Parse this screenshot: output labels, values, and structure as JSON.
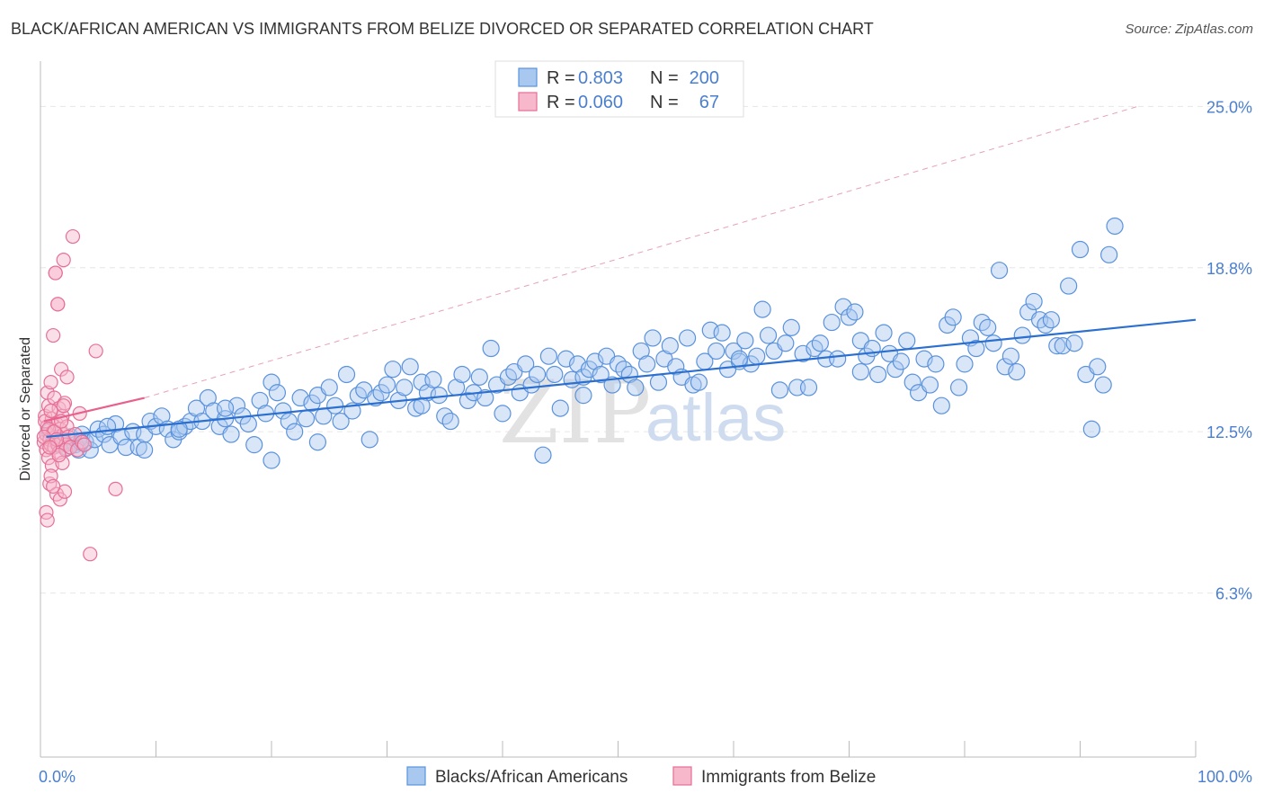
{
  "title": "BLACK/AFRICAN AMERICAN VS IMMIGRANTS FROM BELIZE DIVORCED OR SEPARATED CORRELATION CHART",
  "source": "Source: ZipAtlas.com",
  "watermark": {
    "zip": "ZIP",
    "atlas": "atlas"
  },
  "colors": {
    "blue_fill": "#a8c8f0",
    "blue_stroke": "#5b92dc",
    "blue_line": "#2b6fd0",
    "pink_fill": "#f7b8cb",
    "pink_stroke": "#e66f96",
    "pink_line": "#e8608c",
    "axis_text": "#4a7fd0",
    "grid": "#e6e6e6"
  },
  "legend": {
    "rows": [
      {
        "r_label": "R =",
        "r_value": "0.803",
        "n_label": "N =",
        "n_value": "200"
      },
      {
        "r_label": "R =",
        "r_value": "0.060",
        "n_label": "N =",
        "n_value": "67"
      }
    ]
  },
  "chart_data": {
    "type": "scatter",
    "title": "BLACK/AFRICAN AMERICAN VS IMMIGRANTS FROM BELIZE DIVORCED OR SEPARATED CORRELATION CHART",
    "xlabel": "",
    "ylabel": "Divorced or Separated",
    "xlim": [
      0,
      100
    ],
    "ylim": [
      0,
      26.6
    ],
    "x_tick_labels": [
      "0.0%",
      "100.0%"
    ],
    "y_ticks": [
      6.3,
      12.5,
      18.8,
      25.0
    ],
    "y_tick_labels": [
      "6.3%",
      "12.5%",
      "18.8%",
      "25.0%"
    ],
    "grid": true,
    "legend_position": "top-center",
    "series": [
      {
        "name": "Blacks/African Americans",
        "R": 0.803,
        "N": 200,
        "trend": {
          "x": [
            0.5,
            100
          ],
          "y": [
            12.3,
            16.8
          ]
        },
        "points": [
          [
            0.8,
            12.5
          ],
          [
            1.2,
            12.2
          ],
          [
            1.6,
            12.0
          ],
          [
            2.0,
            12.1
          ],
          [
            2.3,
            11.9
          ],
          [
            2.6,
            12.3
          ],
          [
            3.0,
            12.0
          ],
          [
            3.3,
            11.8
          ],
          [
            3.6,
            12.4
          ],
          [
            3.9,
            12.1
          ],
          [
            4.3,
            11.8
          ],
          [
            4.7,
            12.2
          ],
          [
            5.0,
            12.6
          ],
          [
            5.5,
            12.4
          ],
          [
            6.0,
            12.0
          ],
          [
            6.5,
            12.8
          ],
          [
            7.0,
            12.3
          ],
          [
            7.4,
            11.9
          ],
          [
            8.0,
            12.5
          ],
          [
            8.5,
            11.9
          ],
          [
            9.0,
            12.4
          ],
          [
            9.5,
            12.9
          ],
          [
            10.0,
            12.7
          ],
          [
            10.5,
            13.1
          ],
          [
            11.0,
            12.6
          ],
          [
            11.5,
            12.2
          ],
          [
            12.0,
            12.5
          ],
          [
            12.5,
            12.7
          ],
          [
            13.0,
            12.9
          ],
          [
            13.5,
            13.4
          ],
          [
            14.0,
            12.9
          ],
          [
            14.5,
            13.8
          ],
          [
            15.0,
            13.3
          ],
          [
            15.5,
            12.7
          ],
          [
            16.0,
            13.0
          ],
          [
            16.5,
            12.4
          ],
          [
            17.0,
            13.5
          ],
          [
            17.5,
            13.1
          ],
          [
            18.0,
            12.8
          ],
          [
            18.5,
            12.0
          ],
          [
            19.0,
            13.7
          ],
          [
            19.5,
            13.2
          ],
          [
            20.0,
            14.4
          ],
          [
            20.5,
            14.0
          ],
          [
            21.0,
            13.3
          ],
          [
            21.5,
            12.9
          ],
          [
            22.0,
            12.5
          ],
          [
            22.5,
            13.8
          ],
          [
            23.0,
            13.0
          ],
          [
            23.5,
            13.6
          ],
          [
            24.0,
            13.9
          ],
          [
            24.5,
            13.1
          ],
          [
            25.0,
            14.2
          ],
          [
            25.5,
            13.5
          ],
          [
            26.0,
            12.9
          ],
          [
            26.5,
            14.7
          ],
          [
            27.0,
            13.3
          ],
          [
            27.5,
            13.9
          ],
          [
            28.0,
            14.1
          ],
          [
            28.5,
            12.2
          ],
          [
            29.0,
            13.8
          ],
          [
            29.5,
            14.0
          ],
          [
            30.0,
            14.3
          ],
          [
            30.5,
            14.9
          ],
          [
            31.0,
            13.7
          ],
          [
            31.5,
            14.2
          ],
          [
            32.0,
            15.0
          ],
          [
            32.5,
            13.4
          ],
          [
            33.0,
            14.4
          ],
          [
            33.5,
            14.0
          ],
          [
            34.0,
            14.5
          ],
          [
            34.5,
            13.9
          ],
          [
            35.0,
            13.1
          ],
          [
            35.5,
            12.9
          ],
          [
            36.0,
            14.2
          ],
          [
            36.5,
            14.7
          ],
          [
            37.0,
            13.7
          ],
          [
            37.5,
            14.0
          ],
          [
            38.0,
            14.6
          ],
          [
            38.5,
            13.8
          ],
          [
            39.0,
            15.7
          ],
          [
            39.5,
            14.3
          ],
          [
            40.0,
            13.2
          ],
          [
            40.5,
            14.6
          ],
          [
            41.0,
            14.8
          ],
          [
            41.5,
            14.0
          ],
          [
            42.0,
            15.1
          ],
          [
            42.5,
            14.3
          ],
          [
            43.0,
            14.7
          ],
          [
            43.5,
            11.6
          ],
          [
            44.0,
            15.4
          ],
          [
            44.5,
            14.7
          ],
          [
            45.0,
            13.4
          ],
          [
            45.5,
            15.3
          ],
          [
            46.0,
            14.5
          ],
          [
            46.5,
            15.1
          ],
          [
            47.0,
            14.6
          ],
          [
            47.5,
            14.9
          ],
          [
            48.0,
            15.2
          ],
          [
            48.5,
            14.7
          ],
          [
            49.0,
            15.4
          ],
          [
            49.5,
            14.3
          ],
          [
            50.0,
            15.1
          ],
          [
            50.5,
            14.9
          ],
          [
            51.0,
            14.7
          ],
          [
            51.5,
            14.2
          ],
          [
            52.0,
            15.6
          ],
          [
            52.5,
            15.1
          ],
          [
            53.0,
            16.1
          ],
          [
            53.5,
            14.4
          ],
          [
            54.0,
            15.3
          ],
          [
            54.5,
            15.8
          ],
          [
            55.0,
            15.0
          ],
          [
            55.5,
            14.6
          ],
          [
            56.0,
            16.1
          ],
          [
            56.5,
            14.3
          ],
          [
            57.0,
            14.4
          ],
          [
            57.5,
            15.2
          ],
          [
            58.0,
            16.4
          ],
          [
            58.5,
            15.6
          ],
          [
            59.0,
            16.3
          ],
          [
            59.5,
            14.9
          ],
          [
            60.0,
            15.6
          ],
          [
            60.5,
            15.2
          ],
          [
            61.0,
            16.0
          ],
          [
            61.5,
            15.1
          ],
          [
            62.0,
            15.4
          ],
          [
            62.5,
            17.2
          ],
          [
            63.0,
            16.2
          ],
          [
            63.5,
            15.6
          ],
          [
            64.0,
            14.1
          ],
          [
            64.5,
            15.9
          ],
          [
            65.0,
            16.5
          ],
          [
            65.5,
            14.2
          ],
          [
            66.0,
            15.5
          ],
          [
            66.5,
            14.2
          ],
          [
            67.0,
            15.7
          ],
          [
            67.5,
            15.9
          ],
          [
            68.0,
            15.3
          ],
          [
            68.5,
            16.7
          ],
          [
            69.0,
            15.3
          ],
          [
            69.5,
            17.3
          ],
          [
            70.0,
            16.9
          ],
          [
            70.5,
            17.1
          ],
          [
            71.0,
            16.0
          ],
          [
            71.5,
            15.4
          ],
          [
            72.0,
            15.7
          ],
          [
            72.5,
            14.7
          ],
          [
            73.0,
            16.3
          ],
          [
            73.5,
            15.5
          ],
          [
            74.0,
            14.9
          ],
          [
            74.5,
            15.2
          ],
          [
            75.0,
            16.0
          ],
          [
            75.5,
            14.4
          ],
          [
            76.0,
            14.0
          ],
          [
            76.5,
            15.3
          ],
          [
            77.0,
            14.3
          ],
          [
            77.5,
            15.1
          ],
          [
            78.0,
            13.5
          ],
          [
            78.5,
            16.6
          ],
          [
            79.0,
            16.9
          ],
          [
            79.5,
            14.2
          ],
          [
            80.0,
            15.1
          ],
          [
            80.5,
            16.1
          ],
          [
            81.0,
            15.7
          ],
          [
            81.5,
            16.7
          ],
          [
            82.0,
            16.5
          ],
          [
            82.5,
            15.9
          ],
          [
            83.0,
            18.7
          ],
          [
            83.5,
            15.0
          ],
          [
            84.0,
            15.4
          ],
          [
            84.5,
            14.8
          ],
          [
            85.0,
            16.2
          ],
          [
            85.5,
            17.1
          ],
          [
            86.0,
            17.5
          ],
          [
            86.5,
            16.8
          ],
          [
            87.0,
            16.6
          ],
          [
            87.5,
            16.8
          ],
          [
            88.0,
            15.8
          ],
          [
            88.5,
            15.8
          ],
          [
            89.0,
            18.1
          ],
          [
            89.5,
            15.9
          ],
          [
            90.0,
            19.5
          ],
          [
            90.5,
            14.7
          ],
          [
            91.0,
            12.6
          ],
          [
            91.5,
            15.0
          ],
          [
            92.0,
            14.3
          ],
          [
            92.5,
            19.3
          ],
          [
            93.0,
            20.4
          ],
          [
            3.5,
            12.1
          ],
          [
            9.0,
            11.8
          ],
          [
            20.0,
            11.4
          ],
          [
            5.8,
            12.7
          ],
          [
            12.0,
            12.6
          ],
          [
            16.0,
            13.4
          ],
          [
            24.0,
            12.1
          ],
          [
            33.0,
            13.5
          ],
          [
            47.0,
            13.9
          ],
          [
            60.5,
            15.3
          ],
          [
            71.0,
            14.8
          ]
        ]
      },
      {
        "name": "Immigrants from Belize",
        "R": 0.06,
        "N": 67,
        "trend": {
          "x": [
            0.3,
            9.0
          ],
          "y": [
            12.9,
            13.8
          ]
        },
        "dashed_extension": {
          "x": [
            9.0,
            95.0
          ],
          "y": [
            13.8,
            25.0
          ]
        },
        "points": [
          [
            0.3,
            12.1
          ],
          [
            0.4,
            13.1
          ],
          [
            0.5,
            11.8
          ],
          [
            0.5,
            12.4
          ],
          [
            0.6,
            14.0
          ],
          [
            0.6,
            12.7
          ],
          [
            0.7,
            11.5
          ],
          [
            0.7,
            13.5
          ],
          [
            0.8,
            12.2
          ],
          [
            0.8,
            10.5
          ],
          [
            0.9,
            14.4
          ],
          [
            0.9,
            12.0
          ],
          [
            1.0,
            13.0
          ],
          [
            1.0,
            11.2
          ],
          [
            1.1,
            12.5
          ],
          [
            1.1,
            16.2
          ],
          [
            1.2,
            11.9
          ],
          [
            1.2,
            13.8
          ],
          [
            1.3,
            12.3
          ],
          [
            1.3,
            18.6
          ],
          [
            1.4,
            10.1
          ],
          [
            1.4,
            12.8
          ],
          [
            1.5,
            12.0
          ],
          [
            1.5,
            17.4
          ],
          [
            1.6,
            11.7
          ],
          [
            1.6,
            13.4
          ],
          [
            1.7,
            9.9
          ],
          [
            1.7,
            12.6
          ],
          [
            1.8,
            14.9
          ],
          [
            1.8,
            12.2
          ],
          [
            1.9,
            11.3
          ],
          [
            1.9,
            13.1
          ],
          [
            2.0,
            12.4
          ],
          [
            2.0,
            19.1
          ],
          [
            2.1,
            10.2
          ],
          [
            2.1,
            13.6
          ],
          [
            2.2,
            12.0
          ],
          [
            2.2,
            11.8
          ],
          [
            2.3,
            14.6
          ],
          [
            2.3,
            12.7
          ],
          [
            2.4,
            12.3
          ],
          [
            2.6,
            11.9
          ],
          [
            2.8,
            20.0
          ],
          [
            3.0,
            12.4
          ],
          [
            3.2,
            11.8
          ],
          [
            3.4,
            13.2
          ],
          [
            3.6,
            12.1
          ],
          [
            3.8,
            12.0
          ],
          [
            4.3,
            7.8
          ],
          [
            4.8,
            15.6
          ],
          [
            6.5,
            10.3
          ],
          [
            0.5,
            9.4
          ],
          [
            0.6,
            9.1
          ],
          [
            0.9,
            10.8
          ],
          [
            1.1,
            10.4
          ],
          [
            1.3,
            18.6
          ],
          [
            1.5,
            17.4
          ],
          [
            0.4,
            12.9
          ],
          [
            0.7,
            12.6
          ],
          [
            0.9,
            13.3
          ],
          [
            1.2,
            12.5
          ],
          [
            1.4,
            12.2
          ],
          [
            1.6,
            11.6
          ],
          [
            1.8,
            12.9
          ],
          [
            2.0,
            13.5
          ],
          [
            0.3,
            12.3
          ],
          [
            0.8,
            11.9
          ]
        ]
      }
    ]
  }
}
